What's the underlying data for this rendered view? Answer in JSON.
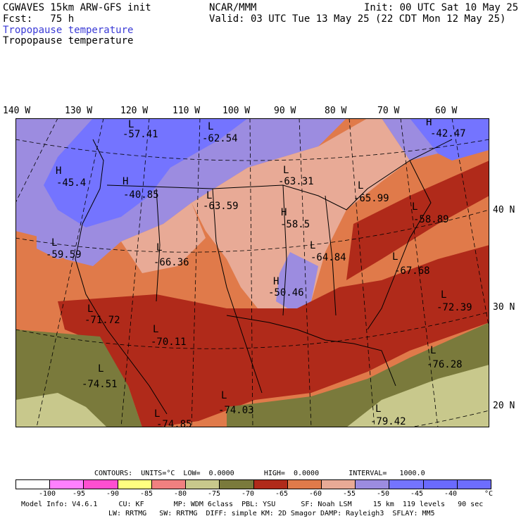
{
  "header": {
    "left_line1": "CGWAVES 15km ARW-GFS init",
    "left_line2": "Fcst:   75 h",
    "center_line1": "NCAR/MMM",
    "right_line1": "Init: 00 UTC Sat 10 May 25",
    "right_line2": "Valid: 03 UTC Tue 13 May 25 (22 CDT Mon 12 May 25)",
    "field_title_blue": "Tropopause temperature",
    "field_title_black": "Tropopause temperature"
  },
  "map": {
    "longitude_labels": [
      "140 W",
      "130 W",
      "120 W",
      "110 W",
      "100 W",
      "90 W",
      "80 W",
      "70 W",
      "60 W"
    ],
    "latitude_labels": [
      "40 N",
      "30 N",
      "20 N"
    ],
    "pressure_centers": [
      {
        "type": "L",
        "value": "-57.41"
      },
      {
        "type": "L",
        "value": "-62.54"
      },
      {
        "type": "H",
        "value": "-42.47"
      },
      {
        "type": "H",
        "value": "-45.4"
      },
      {
        "type": "H",
        "value": "-40.85"
      },
      {
        "type": "L",
        "value": "-63.31"
      },
      {
        "type": "L",
        "value": "-65.99"
      },
      {
        "type": "L",
        "value": "-63.59"
      },
      {
        "type": "H",
        "value": "-58.5"
      },
      {
        "type": "L",
        "value": "-58.89"
      },
      {
        "type": "L",
        "value": "-59.59"
      },
      {
        "type": "L",
        "value": "-66.36"
      },
      {
        "type": "L",
        "value": "-64.84"
      },
      {
        "type": "L",
        "value": "-67.68"
      },
      {
        "type": "H",
        "value": "-50.46"
      },
      {
        "type": "L",
        "value": "-72.39"
      },
      {
        "type": "L",
        "value": "-71.72"
      },
      {
        "type": "L",
        "value": "-70.11"
      },
      {
        "type": "L",
        "value": "-76.28"
      },
      {
        "type": "L",
        "value": "-74.51"
      },
      {
        "type": "L",
        "value": "-74.03"
      },
      {
        "type": "L",
        "value": "-79.42"
      },
      {
        "type": "L",
        "value": "-74.85"
      }
    ]
  },
  "contour_info": "CONTOURS:  UNITS=°C  LOW=  0.0000       HIGH=  0.0000       INTERVAL=   1000.0",
  "colorbar": {
    "colors": [
      "#ffffff",
      "#ff80ff",
      "#ff4fd0",
      "#ffff80",
      "#f08080",
      "#c8c88c",
      "#7a7a3c",
      "#b02a1a",
      "#e07a4a",
      "#e8aa96",
      "#9c8ce0",
      "#7474ff",
      "#6a6aff",
      "#6d6dff"
    ],
    "ticks": [
      "-100",
      "-95",
      "-90",
      "-85",
      "-80",
      "-75",
      "-70",
      "-65",
      "-60",
      "-55",
      "-50",
      "-45",
      "-40"
    ],
    "unit": "°C"
  },
  "footer": {
    "line1": "Model Info: V4.6.1     CU: KF       MP: WDM 6class  PBL: YSU      SF: Noah LSM     15 km  119 levels   90 sec",
    "line2": "LW: RRTMG   SW: RRTMG  DIFF: simple KM: 2D Smagor DAMP: Rayleigh3  SFLAY: MM5"
  }
}
